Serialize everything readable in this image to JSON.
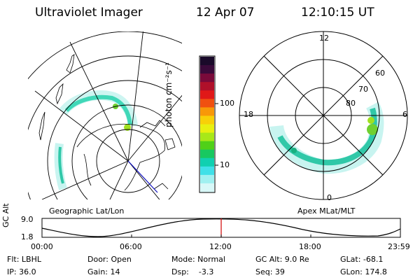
{
  "header": {
    "title": "Ultraviolet Imager",
    "date": "12 Apr 07",
    "time": "12:10:15 UT"
  },
  "colorbar": {
    "label": "photon cm⁻²s⁻¹",
    "ticks": [
      "100",
      "10"
    ],
    "colors": [
      "#1a0a2a",
      "#3a0a3a",
      "#7a0a3a",
      "#b0102a",
      "#e01818",
      "#f05010",
      "#f89808",
      "#f8d008",
      "#e8f010",
      "#a8e818",
      "#50d018",
      "#18c860",
      "#10d0b0",
      "#40e0e8",
      "#a0f0f0",
      "#d8f8f8"
    ]
  },
  "left_map": {
    "caption": "Geographic Lat/Lon"
  },
  "right_map": {
    "caption": "Apex MLat/MLT",
    "mlt_labels": {
      "top": "12",
      "left": "18",
      "right": "6",
      "bottom": "0"
    },
    "lat_labels": [
      "60",
      "70",
      "80"
    ]
  },
  "altitude_plot": {
    "ylabel": "GC Alt",
    "yticks": [
      "9.0",
      "1.8"
    ],
    "xticks": [
      "00:00",
      "06:00",
      "12:00",
      "18:00",
      "23:59"
    ],
    "current_time_marker_color": "#d00000"
  },
  "footer": {
    "row1": {
      "filter": "Flt: LBHL",
      "door": "Door: Open",
      "mode": "Mode: Normal",
      "gcalt": "GC Alt: 9.0 Re",
      "glat": "GLat: -68.1"
    },
    "row2": {
      "ip": "IP: 36.0",
      "gain": "Gain: 14",
      "dsp": "Dsp:    -3.3",
      "seq": "Seq: 39",
      "glon": "GLon: 174.8"
    }
  }
}
